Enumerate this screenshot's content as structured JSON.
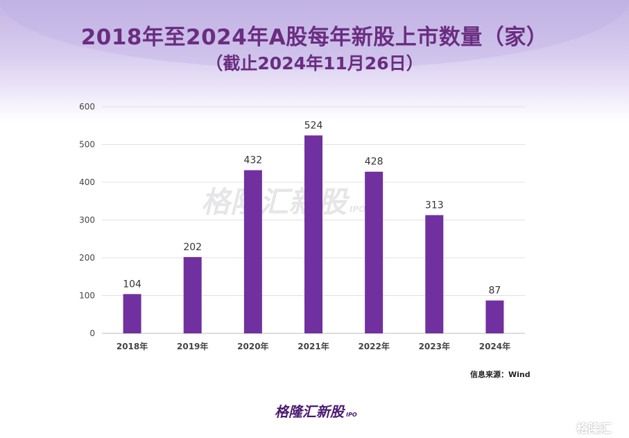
{
  "chart_data": {
    "type": "bar",
    "title": "2018年至2024年A股每年新股上市数量（家）",
    "subtitle": "（截止2024年11月26日）",
    "categories": [
      "2018年",
      "2019年",
      "2020年",
      "2021年",
      "2022年",
      "2023年",
      "2024年"
    ],
    "values": [
      104,
      202,
      432,
      524,
      428,
      313,
      87
    ],
    "ylim": [
      0,
      600
    ],
    "yticks": [
      0,
      100,
      200,
      300,
      400,
      500,
      600
    ],
    "grid": true,
    "bar_color": "#7030a0",
    "xlabel": "",
    "ylabel": ""
  },
  "source": "信息来源：Wind",
  "logo": {
    "text": "格隆汇新股",
    "sub": "IPO"
  },
  "watermark": {
    "text": "格隆汇新股",
    "sub": "IPO"
  },
  "corner_watermark": "格隆汇"
}
